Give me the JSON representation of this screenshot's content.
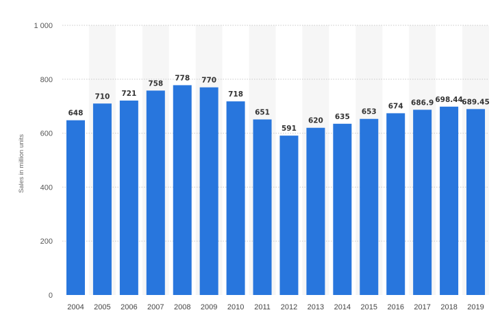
{
  "chart_data": {
    "type": "bar",
    "categories": [
      "2004",
      "2005",
      "2006",
      "2007",
      "2008",
      "2009",
      "2010",
      "2011",
      "2012",
      "2013",
      "2014",
      "2015",
      "2016",
      "2017",
      "2018",
      "2019"
    ],
    "values": [
      648,
      710,
      721,
      758,
      778,
      770,
      718,
      651,
      591,
      620,
      635,
      653,
      674,
      686.9,
      698.44,
      689.45
    ],
    "value_labels": [
      "648",
      "710",
      "721",
      "758",
      "778",
      "770",
      "718",
      "651",
      "591",
      "620",
      "635",
      "653",
      "674",
      "686.9",
      "698.44",
      "689.45"
    ],
    "title": "",
    "xlabel": "",
    "ylabel": "Sales in million units",
    "ylim": [
      0,
      1000
    ],
    "yticks": [
      0,
      200,
      400,
      600,
      800,
      1000
    ],
    "ytick_labels": [
      "0",
      "200",
      "400",
      "600",
      "800",
      "1 000"
    ],
    "grid": true,
    "bar_color": "#2876dd",
    "band_color": "#f6f6f6"
  }
}
